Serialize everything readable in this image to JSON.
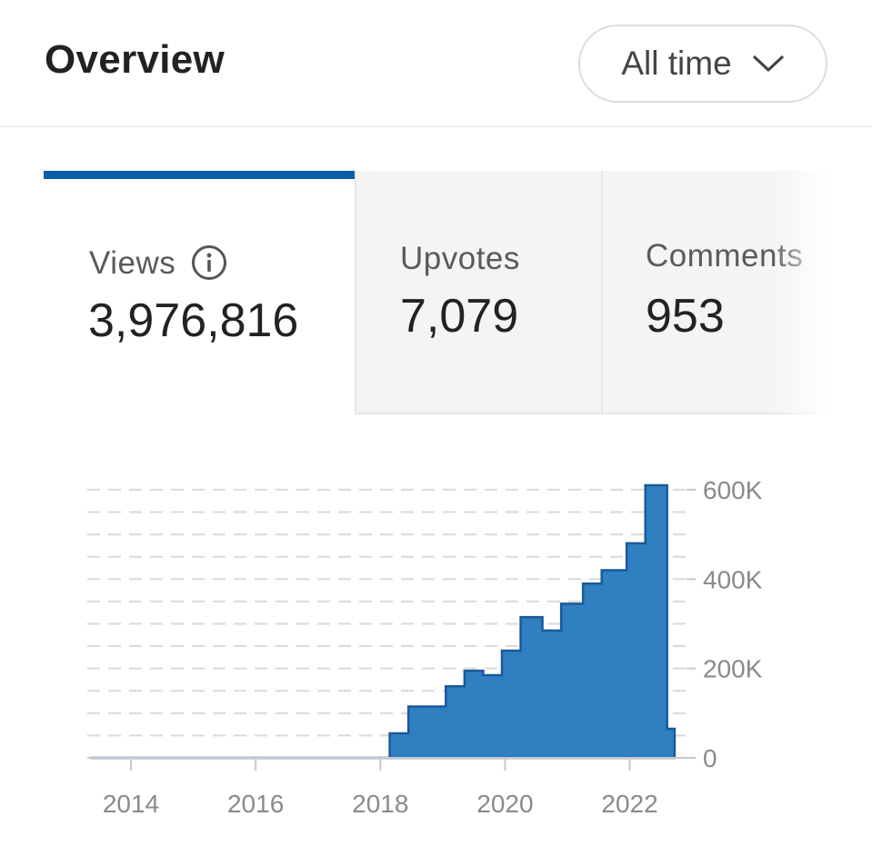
{
  "header": {
    "title": "Overview",
    "period_select": {
      "label": "All time",
      "icon": "chevron-down-icon"
    }
  },
  "tabs": [
    {
      "label": "Views",
      "value": "3,976,816",
      "active": true,
      "icon": "info-icon"
    },
    {
      "label": "Upvotes",
      "value": "7,079",
      "active": false
    },
    {
      "label": "Comments",
      "value": "953",
      "active": false
    }
  ],
  "colors": {
    "accent": "#0a5fa8",
    "bar_fill": "#2f7fc1",
    "bar_stroke": "#1a5a98",
    "grid": "#d9d9d9",
    "axis_text": "#8a8a8a"
  },
  "chart_data": {
    "type": "area",
    "step": true,
    "series": [
      {
        "values": [
          [
            2013.35,
            0
          ],
          [
            2018.15,
            0
          ],
          [
            2018.15,
            55000
          ],
          [
            2018.45,
            55000
          ],
          [
            2018.45,
            115000
          ],
          [
            2019.05,
            115000
          ],
          [
            2019.05,
            160000
          ],
          [
            2019.35,
            160000
          ],
          [
            2019.35,
            195000
          ],
          [
            2019.65,
            195000
          ],
          [
            2019.65,
            185000
          ],
          [
            2019.95,
            185000
          ],
          [
            2019.95,
            240000
          ],
          [
            2020.25,
            240000
          ],
          [
            2020.25,
            315000
          ],
          [
            2020.6,
            315000
          ],
          [
            2020.6,
            285000
          ],
          [
            2020.9,
            285000
          ],
          [
            2020.9,
            345000
          ],
          [
            2021.25,
            345000
          ],
          [
            2021.25,
            390000
          ],
          [
            2021.55,
            390000
          ],
          [
            2021.55,
            420000
          ],
          [
            2021.95,
            420000
          ],
          [
            2021.95,
            480000
          ],
          [
            2022.25,
            480000
          ],
          [
            2022.25,
            610000
          ],
          [
            2022.6,
            610000
          ],
          [
            2022.6,
            65000
          ],
          [
            2022.72,
            65000
          ],
          [
            2022.72,
            0
          ]
        ]
      }
    ],
    "x_ticks": [
      "2014",
      "2016",
      "2018",
      "2020",
      "2022"
    ],
    "x_tick_values": [
      2014,
      2016,
      2018,
      2020,
      2022
    ],
    "y_ticks": [
      "600K",
      "400K",
      "200K",
      "0"
    ],
    "y_tick_values": [
      600000,
      400000,
      200000,
      0
    ],
    "xlim": [
      2013.3,
      2022.75
    ],
    "ylim": [
      0,
      610000
    ],
    "grid": true,
    "legend": "none",
    "title": "",
    "xlabel": "",
    "ylabel": ""
  }
}
